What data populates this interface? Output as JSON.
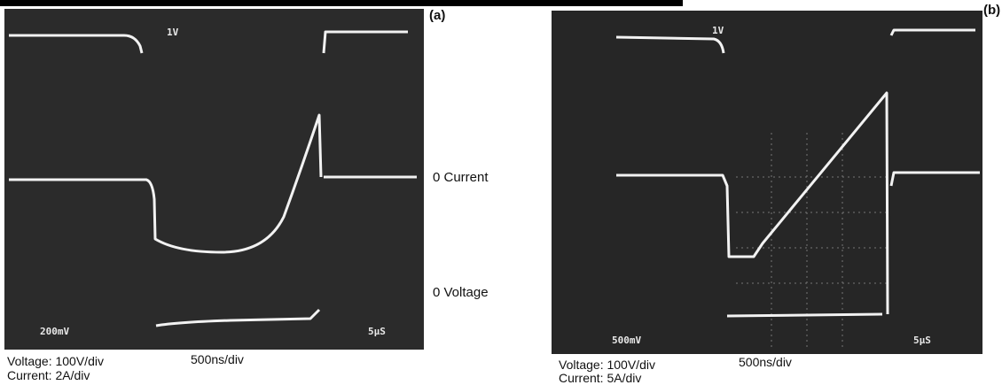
{
  "panel_a": {
    "label": "(a)",
    "scope_top": "1V",
    "scope_bottom_left": "200mV",
    "scope_bottom_right": "5µS",
    "trace_labels": [
      "0 Current",
      "0 Voltage"
    ],
    "caption": {
      "voltage": "Voltage: 100V/div",
      "timebase": "500ns/div",
      "current": "Current: 2A/div"
    }
  },
  "panel_b": {
    "label": "(b)",
    "scope_top": "1V",
    "scope_bottom_left": "500mV",
    "scope_bottom_right": "5µS",
    "caption": {
      "voltage": "Voltage: 100V/div",
      "timebase": "500ns/div",
      "current": "Current: 5A/div"
    }
  }
}
